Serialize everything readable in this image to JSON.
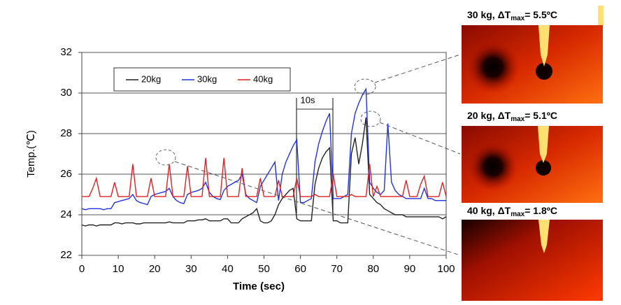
{
  "chart_data": {
    "type": "line",
    "xlabel": "Time (sec)",
    "ylabel": "Temp.(℃)",
    "annotation": "10s",
    "x": [
      0,
      1,
      2,
      3,
      4,
      5,
      6,
      7,
      8,
      9,
      10,
      11,
      12,
      13,
      14,
      15,
      16,
      17,
      18,
      19,
      20,
      21,
      22,
      23,
      24,
      25,
      26,
      27,
      28,
      29,
      30,
      31,
      32,
      33,
      34,
      35,
      36,
      37,
      38,
      39,
      40,
      41,
      42,
      43,
      44,
      45,
      46,
      47,
      48,
      49,
      50,
      51,
      52,
      53,
      54,
      55,
      56,
      57,
      58,
      59,
      60,
      61,
      62,
      63,
      64,
      65,
      66,
      67,
      68,
      69,
      70,
      71,
      72,
      73,
      74,
      75,
      76,
      77,
      78,
      79,
      80,
      81,
      82,
      83,
      84,
      85,
      86,
      87,
      88,
      89,
      90,
      91,
      92,
      93,
      94,
      95,
      96,
      97,
      98,
      99,
      100
    ],
    "series": [
      {
        "name": "20kg",
        "color": "#222222",
        "values": [
          23.5,
          23.45,
          23.5,
          23.5,
          23.45,
          23.5,
          23.5,
          23.5,
          23.5,
          23.6,
          23.6,
          23.55,
          23.6,
          23.6,
          23.6,
          23.55,
          23.55,
          23.6,
          23.6,
          23.6,
          23.6,
          23.6,
          23.6,
          23.6,
          23.65,
          23.6,
          23.6,
          23.6,
          23.6,
          23.7,
          23.7,
          23.7,
          23.75,
          23.75,
          23.8,
          23.7,
          23.7,
          23.7,
          23.7,
          23.8,
          23.8,
          23.6,
          23.6,
          23.6,
          23.8,
          23.9,
          24.0,
          24.1,
          24.3,
          23.7,
          23.6,
          23.6,
          23.7,
          24.0,
          24.5,
          24.8,
          25.0,
          25.2,
          25.3,
          23.8,
          23.7,
          23.7,
          23.7,
          23.7,
          25.5,
          26.3,
          26.8,
          27.1,
          27.3,
          23.7,
          23.7,
          23.6,
          23.6,
          23.6,
          27.0,
          27.8,
          26.5,
          27.5,
          28.8,
          25.0,
          24.8,
          24.6,
          24.5,
          24.3,
          24.2,
          24.1,
          24.0,
          24.0,
          24.0,
          23.9,
          23.9,
          23.9,
          23.9,
          23.9,
          23.9,
          23.9,
          23.9,
          23.9,
          23.9,
          23.8,
          23.9
        ]
      },
      {
        "name": "30kg",
        "color": "#2233dd",
        "values": [
          24.3,
          24.25,
          24.3,
          24.3,
          24.3,
          24.3,
          24.25,
          24.3,
          24.3,
          24.6,
          24.65,
          24.7,
          24.75,
          24.8,
          25.0,
          24.7,
          24.6,
          24.55,
          24.5,
          24.9,
          25.0,
          25.05,
          25.1,
          25.15,
          25.3,
          24.9,
          24.7,
          24.6,
          24.55,
          25.0,
          25.1,
          25.15,
          25.2,
          25.3,
          25.6,
          25.1,
          24.9,
          24.8,
          24.75,
          25.2,
          25.4,
          25.5,
          25.6,
          25.7,
          26.0,
          25.0,
          24.8,
          24.7,
          24.6,
          25.4,
          25.7,
          26.0,
          26.3,
          26.6,
          24.7,
          26.0,
          26.6,
          27.0,
          27.4,
          27.7,
          24.6,
          24.6,
          24.7,
          24.8,
          26.6,
          27.5,
          28.1,
          28.6,
          29.0,
          24.8,
          24.8,
          24.8,
          24.9,
          25.0,
          28.0,
          29.0,
          29.5,
          29.9,
          30.2,
          25.6,
          25.3,
          25.1,
          25.0,
          25.2,
          28.5,
          25.6,
          25.2,
          25.0,
          24.9,
          24.8,
          24.8,
          24.8,
          24.8,
          24.8,
          25.3,
          24.8,
          24.8,
          24.7,
          24.7,
          24.7,
          24.7
        ]
      },
      {
        "name": "40kg",
        "color": "#dd2222",
        "values": [
          24.9,
          24.9,
          24.9,
          25.3,
          25.8,
          24.9,
          24.9,
          24.9,
          24.9,
          25.6,
          24.9,
          24.9,
          24.9,
          24.9,
          26.5,
          24.9,
          24.9,
          24.9,
          24.9,
          25.8,
          24.9,
          24.9,
          24.9,
          24.9,
          26.5,
          24.9,
          24.9,
          24.9,
          24.9,
          26.4,
          24.9,
          24.9,
          24.9,
          24.9,
          26.8,
          24.9,
          24.9,
          24.9,
          24.9,
          26.8,
          24.9,
          24.9,
          24.9,
          24.9,
          26.3,
          24.9,
          24.9,
          24.9,
          24.9,
          25.8,
          24.9,
          24.9,
          24.9,
          24.9,
          25.7,
          24.9,
          24.9,
          24.9,
          24.9,
          25.8,
          24.9,
          24.9,
          24.9,
          24.9,
          25.0,
          24.9,
          24.9,
          24.9,
          24.9,
          26.0,
          24.9,
          24.9,
          24.9,
          24.9,
          25.0,
          24.9,
          24.9,
          24.9,
          24.9,
          26.5,
          24.9,
          25.4,
          24.9,
          24.9,
          24.9,
          24.9,
          24.9,
          24.9,
          24.9,
          25.7,
          24.9,
          24.9,
          24.9,
          25.5,
          25.9,
          24.9,
          24.9,
          24.9,
          24.9,
          25.6,
          24.9
        ]
      }
    ],
    "xlim": [
      0,
      100
    ],
    "xticks": [
      0,
      10,
      20,
      30,
      40,
      50,
      60,
      70,
      80,
      90,
      100
    ],
    "ylim": [
      22,
      32
    ],
    "yticks": [
      22,
      24,
      26,
      28,
      30,
      32
    ],
    "grid": true
  },
  "panels": [
    {
      "label": "30 kg, ΔT",
      "sub": "max",
      "rest": "= 5.5ºC"
    },
    {
      "label": "20 kg, ΔT",
      "sub": "max",
      "rest": "= 5.1ºC"
    },
    {
      "label": "40 kg, ΔT",
      "sub": "max",
      "rest": "= 1.8ºC"
    }
  ]
}
